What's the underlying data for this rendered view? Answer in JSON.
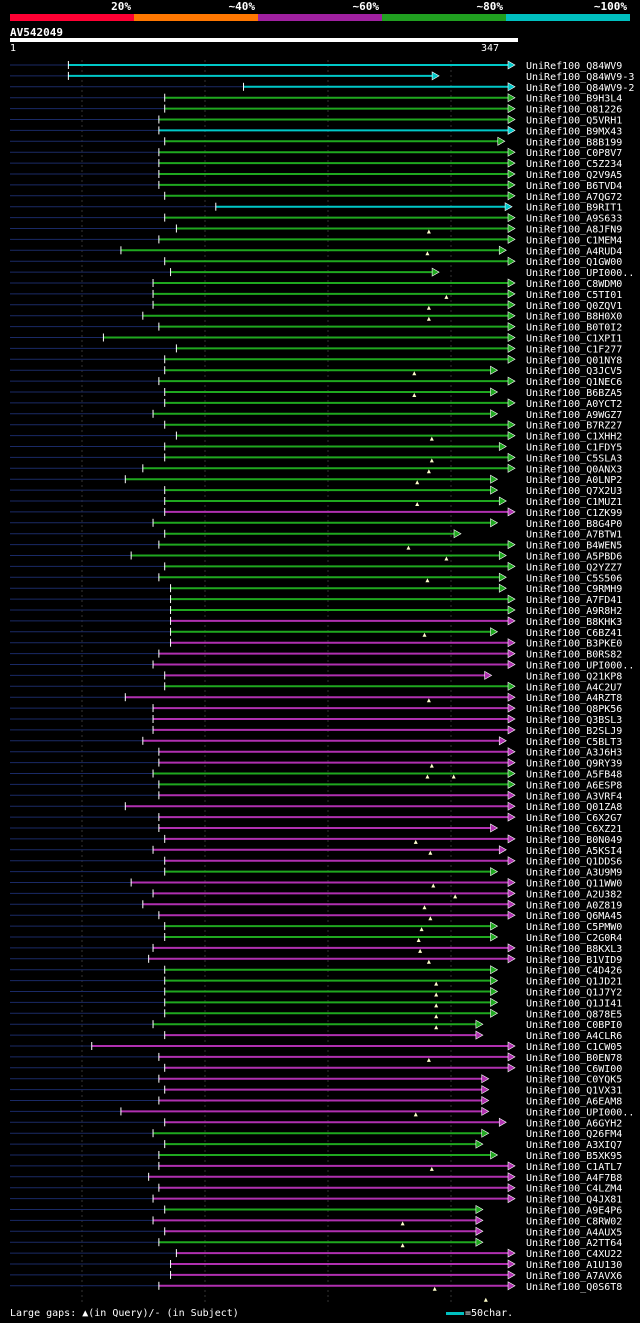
{
  "legend": [
    {
      "label": "20%",
      "color": "#ff0033"
    },
    {
      "label": "~40%",
      "color": "#ff7700"
    },
    {
      "label": "~60%",
      "color": "#a020a0"
    },
    {
      "label": "~80%",
      "color": "#20a020"
    },
    {
      "label": "~100%",
      "color": "#00c0c0"
    }
  ],
  "query": {
    "name": "AV542049",
    "start": "1",
    "end": "347"
  },
  "footer": {
    "text": "Large gaps: ▲(in Query)/- (in Subject)",
    "scale": "=50char."
  },
  "chart_data": {
    "type": "alignment",
    "query_length": 347,
    "hits": [
      {
        "name": "UniRef100_Q84WV9",
        "start": 41,
        "end": 347,
        "color": "cyan"
      },
      {
        "name": "UniRef100_Q84WV9-3",
        "start": 41,
        "end": 295,
        "color": "cyan"
      },
      {
        "name": "UniRef100_Q84WV9-2",
        "start": 161,
        "end": 347,
        "color": "cyan"
      },
      {
        "name": "UniRef100_B9H3L4",
        "start": 107,
        "end": 347,
        "color": "green"
      },
      {
        "name": "UniRef100_O81226",
        "start": 107,
        "end": 347,
        "color": "green"
      },
      {
        "name": "UniRef100_Q5VRH1",
        "start": 103,
        "end": 347,
        "color": "green"
      },
      {
        "name": "UniRef100_B9MX43",
        "start": 103,
        "end": 347,
        "color": "cyan"
      },
      {
        "name": "UniRef100_B8B199",
        "start": 107,
        "end": 340,
        "color": "green"
      },
      {
        "name": "UniRef100_C0P8V7",
        "start": 103,
        "end": 347,
        "color": "green"
      },
      {
        "name": "UniRef100_C5Z234",
        "start": 103,
        "end": 347,
        "color": "green"
      },
      {
        "name": "UniRef100_Q2V9A5",
        "start": 103,
        "end": 347,
        "color": "green"
      },
      {
        "name": "UniRef100_B6TVD4",
        "start": 103,
        "end": 347,
        "color": "green"
      },
      {
        "name": "UniRef100_A7QG72",
        "start": 107,
        "end": 347,
        "color": "green"
      },
      {
        "name": "UniRef100_B9RIT1",
        "start": 142,
        "end": 345,
        "color": "cyan"
      },
      {
        "name": "UniRef100_A9S633",
        "start": 107,
        "end": 347,
        "color": "green"
      },
      {
        "name": "UniRef100_A8JFN9",
        "start": 115,
        "end": 347,
        "color": "green"
      },
      {
        "name": "UniRef100_C1MEM4",
        "start": 103,
        "end": 347,
        "color": "green"
      },
      {
        "name": "UniRef100_A4RUD4",
        "start": 77,
        "end": 341,
        "color": "green"
      },
      {
        "name": "UniRef100_Q1GW00",
        "start": 107,
        "end": 347,
        "color": "green"
      },
      {
        "name": "UniRef100_UPI000..",
        "start": 111,
        "end": 295,
        "color": "green"
      },
      {
        "name": "UniRef100_C8WDM0",
        "start": 99,
        "end": 347,
        "color": "green"
      },
      {
        "name": "UniRef100_C5TI01",
        "start": 99,
        "end": 347,
        "color": "green"
      },
      {
        "name": "UniRef100_Q0ZQV1",
        "start": 99,
        "end": 347,
        "color": "green"
      },
      {
        "name": "UniRef100_B8H0X0",
        "start": 92,
        "end": 347,
        "color": "green"
      },
      {
        "name": "UniRef100_B0T0I2",
        "start": 103,
        "end": 347,
        "color": "green"
      },
      {
        "name": "UniRef100_C1XPI1",
        "start": 65,
        "end": 347,
        "color": "green"
      },
      {
        "name": "UniRef100_C1F277",
        "start": 115,
        "end": 347,
        "color": "green"
      },
      {
        "name": "UniRef100_Q01NY8",
        "start": 107,
        "end": 347,
        "color": "green"
      },
      {
        "name": "UniRef100_Q3JCV5",
        "start": 107,
        "end": 335,
        "color": "green"
      },
      {
        "name": "UniRef100_Q1NEC6",
        "start": 103,
        "end": 347,
        "color": "green"
      },
      {
        "name": "UniRef100_B6BZA5",
        "start": 107,
        "end": 335,
        "color": "green"
      },
      {
        "name": "UniRef100_A0YCT2",
        "start": 107,
        "end": 347,
        "color": "green"
      },
      {
        "name": "UniRef100_A9WGZ7",
        "start": 99,
        "end": 335,
        "color": "green"
      },
      {
        "name": "UniRef100_B7RZ27",
        "start": 107,
        "end": 347,
        "color": "green"
      },
      {
        "name": "UniRef100_C1XHH2",
        "start": 115,
        "end": 347,
        "color": "green"
      },
      {
        "name": "UniRef100_C1FDY5",
        "start": 107,
        "end": 341,
        "color": "green"
      },
      {
        "name": "UniRef100_C5SLA3",
        "start": 107,
        "end": 347,
        "color": "green"
      },
      {
        "name": "UniRef100_Q0ANX3",
        "start": 92,
        "end": 347,
        "color": "green"
      },
      {
        "name": "UniRef100_A0LNP2",
        "start": 80,
        "end": 335,
        "color": "green"
      },
      {
        "name": "UniRef100_Q7X2U3",
        "start": 107,
        "end": 335,
        "color": "green"
      },
      {
        "name": "UniRef100_C1MUZ1",
        "start": 107,
        "end": 341,
        "color": "green"
      },
      {
        "name": "UniRef100_C1ZK99",
        "start": 107,
        "end": 347,
        "color": "magenta"
      },
      {
        "name": "UniRef100_B8G4P0",
        "start": 99,
        "end": 335,
        "color": "green"
      },
      {
        "name": "UniRef100_A7BTW1",
        "start": 107,
        "end": 310,
        "color": "green"
      },
      {
        "name": "UniRef100_B4WEN5",
        "start": 103,
        "end": 347,
        "color": "green"
      },
      {
        "name": "UniRef100_A5PBD6",
        "start": 84,
        "end": 341,
        "color": "green"
      },
      {
        "name": "UniRef100_Q2YZZ7",
        "start": 107,
        "end": 347,
        "color": "green"
      },
      {
        "name": "UniRef100_C5S506",
        "start": 103,
        "end": 341,
        "color": "green"
      },
      {
        "name": "UniRef100_C9RMH9",
        "start": 111,
        "end": 341,
        "color": "green"
      },
      {
        "name": "UniRef100_A7FD41",
        "start": 111,
        "end": 347,
        "color": "green"
      },
      {
        "name": "UniRef100_A9R8H2",
        "start": 111,
        "end": 347,
        "color": "green"
      },
      {
        "name": "UniRef100_B8KHK3",
        "start": 111,
        "end": 347,
        "color": "magenta"
      },
      {
        "name": "UniRef100_C6BZ41",
        "start": 111,
        "end": 335,
        "color": "green"
      },
      {
        "name": "UniRef100_B3PKE0",
        "start": 111,
        "end": 347,
        "color": "magenta"
      },
      {
        "name": "UniRef100_B0RS82",
        "start": 103,
        "end": 347,
        "color": "magenta"
      },
      {
        "name": "UniRef100_UPI000..",
        "start": 99,
        "end": 347,
        "color": "magenta"
      },
      {
        "name": "UniRef100_Q21KP8",
        "start": 107,
        "end": 331,
        "color": "magenta"
      },
      {
        "name": "UniRef100_A4C2U7",
        "start": 107,
        "end": 347,
        "color": "green"
      },
      {
        "name": "UniRef100_A4RZT8",
        "start": 80,
        "end": 347,
        "color": "magenta"
      },
      {
        "name": "UniRef100_Q8PK56",
        "start": 99,
        "end": 347,
        "color": "magenta"
      },
      {
        "name": "UniRef100_Q3BSL3",
        "start": 99,
        "end": 347,
        "color": "magenta"
      },
      {
        "name": "UniRef100_B2SLJ9",
        "start": 99,
        "end": 347,
        "color": "magenta"
      },
      {
        "name": "UniRef100_C5BLT3",
        "start": 92,
        "end": 341,
        "color": "magenta"
      },
      {
        "name": "UniRef100_A3J6H3",
        "start": 103,
        "end": 347,
        "color": "magenta"
      },
      {
        "name": "UniRef100_Q9RY39",
        "start": 103,
        "end": 347,
        "color": "magenta"
      },
      {
        "name": "UniRef100_A5FB48",
        "start": 99,
        "end": 347,
        "color": "green"
      },
      {
        "name": "UniRef100_A6ESP8",
        "start": 103,
        "end": 347,
        "color": "green"
      },
      {
        "name": "UniRef100_A3VRF4",
        "start": 103,
        "end": 347,
        "color": "magenta"
      },
      {
        "name": "UniRef100_Q01ZA8",
        "start": 80,
        "end": 347,
        "color": "magenta"
      },
      {
        "name": "UniRef100_C6X2G7",
        "start": 103,
        "end": 347,
        "color": "magenta"
      },
      {
        "name": "UniRef100_C6XZ21",
        "start": 103,
        "end": 335,
        "color": "magenta"
      },
      {
        "name": "UniRef100_B0N049",
        "start": 107,
        "end": 347,
        "color": "magenta"
      },
      {
        "name": "UniRef100_A5KSI4",
        "start": 99,
        "end": 341,
        "color": "magenta"
      },
      {
        "name": "UniRef100_Q1DDS6",
        "start": 107,
        "end": 347,
        "color": "magenta"
      },
      {
        "name": "UniRef100_A3U9M9",
        "start": 107,
        "end": 335,
        "color": "green"
      },
      {
        "name": "UniRef100_Q11WW0",
        "start": 84,
        "end": 347,
        "color": "magenta"
      },
      {
        "name": "UniRef100_A2U382",
        "start": 99,
        "end": 347,
        "color": "magenta"
      },
      {
        "name": "UniRef100_A0Z819",
        "start": 92,
        "end": 347,
        "color": "magenta"
      },
      {
        "name": "UniRef100_Q6MA45",
        "start": 103,
        "end": 347,
        "color": "magenta"
      },
      {
        "name": "UniRef100_C5PMW0",
        "start": 107,
        "end": 335,
        "color": "green"
      },
      {
        "name": "UniRef100_C2G0R4",
        "start": 107,
        "end": 335,
        "color": "green"
      },
      {
        "name": "UniRef100_B8KXL3",
        "start": 99,
        "end": 347,
        "color": "magenta"
      },
      {
        "name": "UniRef100_B1VID9",
        "start": 96,
        "end": 347,
        "color": "magenta"
      },
      {
        "name": "UniRef100_C4D426",
        "start": 107,
        "end": 335,
        "color": "green"
      },
      {
        "name": "UniRef100_Q1JD21",
        "start": 107,
        "end": 335,
        "color": "green"
      },
      {
        "name": "UniRef100_Q1J7Y2",
        "start": 107,
        "end": 335,
        "color": "green"
      },
      {
        "name": "UniRef100_Q1JI41",
        "start": 107,
        "end": 335,
        "color": "green"
      },
      {
        "name": "UniRef100_Q878E5",
        "start": 107,
        "end": 335,
        "color": "green"
      },
      {
        "name": "UniRef100_C0BPI0",
        "start": 99,
        "end": 325,
        "color": "green"
      },
      {
        "name": "UniRef100_A4CLR6",
        "start": 107,
        "end": 325,
        "color": "magenta"
      },
      {
        "name": "UniRef100_C1CW05",
        "start": 57,
        "end": 347,
        "color": "magenta"
      },
      {
        "name": "UniRef100_B0EN78",
        "start": 103,
        "end": 347,
        "color": "magenta"
      },
      {
        "name": "UniRef100_C6WI00",
        "start": 107,
        "end": 347,
        "color": "magenta"
      },
      {
        "name": "UniRef100_C0YQK5",
        "start": 103,
        "end": 329,
        "color": "magenta"
      },
      {
        "name": "UniRef100_Q1VX31",
        "start": 107,
        "end": 329,
        "color": "magenta"
      },
      {
        "name": "UniRef100_A6EAM8",
        "start": 103,
        "end": 329,
        "color": "magenta"
      },
      {
        "name": "UniRef100_UPI000..",
        "start": 77,
        "end": 329,
        "color": "magenta"
      },
      {
        "name": "UniRef100_A6GYH2",
        "start": 107,
        "end": 341,
        "color": "magenta"
      },
      {
        "name": "UniRef100_Q26FM4",
        "start": 99,
        "end": 329,
        "color": "green"
      },
      {
        "name": "UniRef100_A3XIQ7",
        "start": 107,
        "end": 325,
        "color": "green"
      },
      {
        "name": "UniRef100_B5XK95",
        "start": 103,
        "end": 335,
        "color": "green"
      },
      {
        "name": "UniRef100_C1ATL7",
        "start": 103,
        "end": 347,
        "color": "magenta"
      },
      {
        "name": "UniRef100_A4F7B8",
        "start": 96,
        "end": 347,
        "color": "magenta"
      },
      {
        "name": "UniRef100_C4LZM4",
        "start": 103,
        "end": 347,
        "color": "magenta"
      },
      {
        "name": "UniRef100_Q4JX81",
        "start": 99,
        "end": 347,
        "color": "magenta"
      },
      {
        "name": "UniRef100_A9E4P6",
        "start": 107,
        "end": 325,
        "color": "green"
      },
      {
        "name": "UniRef100_C8RW02",
        "start": 99,
        "end": 325,
        "color": "magenta"
      },
      {
        "name": "UniRef100_A4AUX5",
        "start": 107,
        "end": 325,
        "color": "magenta"
      },
      {
        "name": "UniRef100_A2TT64",
        "start": 103,
        "end": 325,
        "color": "green"
      },
      {
        "name": "UniRef100_C4XU22",
        "start": 115,
        "end": 347,
        "color": "magenta"
      },
      {
        "name": "UniRef100_A1U130",
        "start": 111,
        "end": 347,
        "color": "magenta"
      },
      {
        "name": "UniRef100_A7AVX6",
        "start": 111,
        "end": 347,
        "color": "magenta"
      },
      {
        "name": "UniRef100_Q0S6T8",
        "start": 103,
        "end": 347,
        "color": "magenta"
      }
    ],
    "markers": [
      {
        "row": 15,
        "pos": 288
      },
      {
        "row": 17,
        "pos": 287
      },
      {
        "row": 21,
        "pos": 300
      },
      {
        "row": 22,
        "pos": 288
      },
      {
        "row": 23,
        "pos": 288
      },
      {
        "row": 28,
        "pos": 278
      },
      {
        "row": 30,
        "pos": 278
      },
      {
        "row": 34,
        "pos": 290
      },
      {
        "row": 36,
        "pos": 290
      },
      {
        "row": 37,
        "pos": 288
      },
      {
        "row": 38,
        "pos": 280
      },
      {
        "row": 40,
        "pos": 280
      },
      {
        "row": 44,
        "pos": 274
      },
      {
        "row": 45,
        "pos": 300
      },
      {
        "row": 47,
        "pos": 287
      },
      {
        "row": 52,
        "pos": 285
      },
      {
        "row": 58,
        "pos": 288
      },
      {
        "row": 64,
        "pos": 290
      },
      {
        "row": 65,
        "pos": 287
      },
      {
        "row": 65,
        "pos": 305
      },
      {
        "row": 71,
        "pos": 279
      },
      {
        "row": 72,
        "pos": 289
      },
      {
        "row": 75,
        "pos": 291
      },
      {
        "row": 76,
        "pos": 306
      },
      {
        "row": 77,
        "pos": 285
      },
      {
        "row": 78,
        "pos": 289
      },
      {
        "row": 79,
        "pos": 283
      },
      {
        "row": 80,
        "pos": 281
      },
      {
        "row": 81,
        "pos": 282
      },
      {
        "row": 82,
        "pos": 288
      },
      {
        "row": 84,
        "pos": 293
      },
      {
        "row": 85,
        "pos": 293
      },
      {
        "row": 86,
        "pos": 293
      },
      {
        "row": 87,
        "pos": 293
      },
      {
        "row": 88,
        "pos": 293
      },
      {
        "row": 91,
        "pos": 288
      },
      {
        "row": 96,
        "pos": 279
      },
      {
        "row": 101,
        "pos": 290
      },
      {
        "row": 106,
        "pos": 270
      },
      {
        "row": 108,
        "pos": 270
      },
      {
        "row": 112,
        "pos": 292
      },
      {
        "row": 113,
        "pos": 327
      }
    ]
  }
}
